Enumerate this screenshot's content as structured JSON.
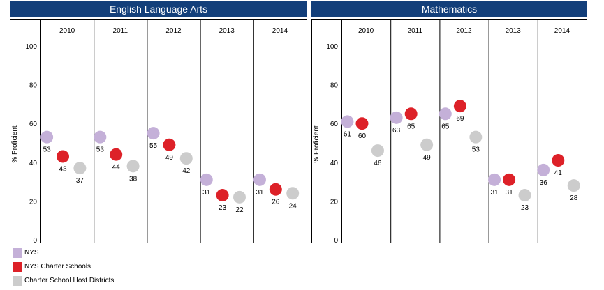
{
  "colors": {
    "nys": "#c4b0d8",
    "charter": "#dd2128",
    "host": "#cccccc",
    "title_bg": "#133f7a"
  },
  "chart_data": [
    {
      "type": "scatter",
      "title": "English Language Arts",
      "categories": [
        "2010",
        "2011",
        "2012",
        "2013",
        "2014"
      ],
      "ylabel": "% Proficient",
      "ylim": [
        0,
        100
      ],
      "yticks": [
        "0",
        "20",
        "40",
        "60",
        "80",
        "100"
      ],
      "series": [
        {
          "name": "NYS",
          "values": [
            53,
            53,
            55,
            31,
            31
          ]
        },
        {
          "name": "NYS Charter Schools",
          "values": [
            43,
            44,
            49,
            23,
            26
          ]
        },
        {
          "name": "Charter School Host Districts",
          "values": [
            37,
            38,
            42,
            22,
            24
          ]
        }
      ]
    },
    {
      "type": "scatter",
      "title": "Mathematics",
      "categories": [
        "2010",
        "2011",
        "2012",
        "2013",
        "2014"
      ],
      "ylabel": "% Proficient",
      "ylim": [
        0,
        100
      ],
      "yticks": [
        "0",
        "20",
        "40",
        "60",
        "80",
        "100"
      ],
      "series": [
        {
          "name": "NYS",
          "values": [
            61,
            63,
            65,
            31,
            36
          ]
        },
        {
          "name": "NYS Charter Schools",
          "values": [
            60,
            65,
            69,
            31,
            41
          ]
        },
        {
          "name": "Charter School Host Districts",
          "values": [
            46,
            49,
            53,
            23,
            28
          ]
        }
      ]
    }
  ],
  "legend": [
    {
      "label": "NYS",
      "color_key": "nys"
    },
    {
      "label": "NYS Charter Schools",
      "color_key": "charter"
    },
    {
      "label": "Charter School Host Districts",
      "color_key": "host"
    }
  ]
}
